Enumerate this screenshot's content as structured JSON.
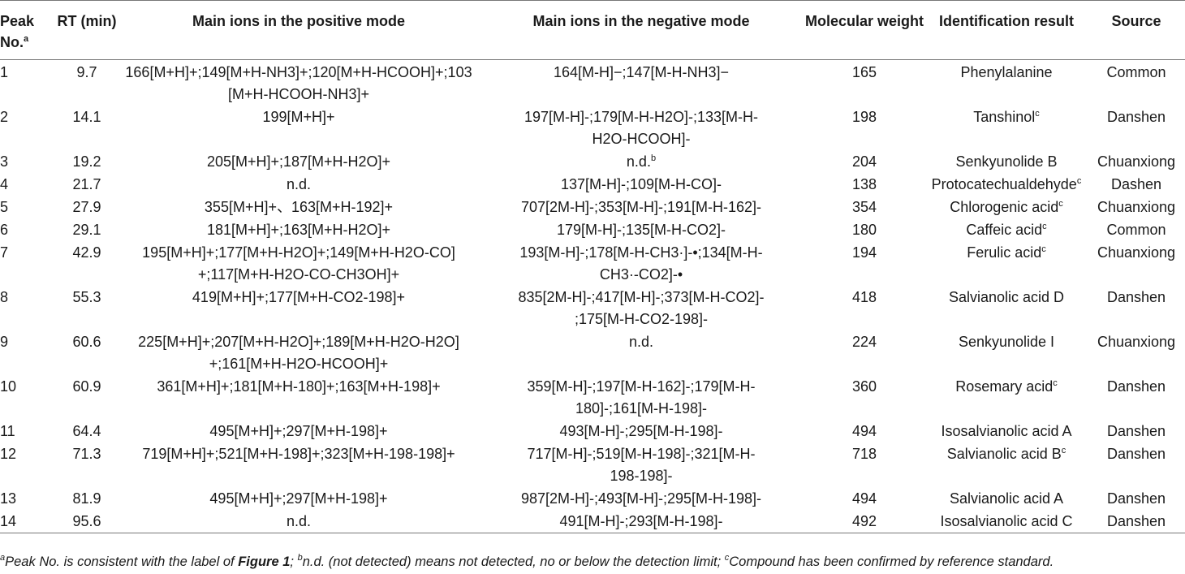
{
  "table": {
    "headers": {
      "peak": "Peak No.",
      "peak_sup": "a",
      "rt": "RT (min)",
      "pos": "Main ions in the positive mode",
      "neg": "Main ions in the negative mode",
      "mw": "Molecular weight",
      "id": "Identification result",
      "src": "Source"
    },
    "rows": [
      {
        "no": "1",
        "rt": "9.7",
        "pos": "166[M+H]+;149[M+H-NH3]+;120[M+H-HCOOH]+;103\n[M+H-HCOOH-NH3]+",
        "neg": "164[M-H]−;147[M-H-NH3]−",
        "neg_sup": "",
        "mw": "165",
        "id": "Phenylalanine",
        "id_sup": "",
        "src": "Common"
      },
      {
        "no": "2",
        "rt": "14.1",
        "pos": "199[M+H]+",
        "neg": "197[M-H]-;179[M-H-H2O]-;133[M-H-\nH2O-HCOOH]-",
        "neg_sup": "",
        "mw": "198",
        "id": "Tanshinol",
        "id_sup": "c",
        "src": "Danshen"
      },
      {
        "no": "3",
        "rt": "19.2",
        "pos": "205[M+H]+;187[M+H-H2O]+",
        "neg": "n.d.",
        "neg_sup": "b",
        "mw": "204",
        "id": "Senkyunolide B",
        "id_sup": "",
        "src": "Chuanxiong"
      },
      {
        "no": "4",
        "rt": "21.7",
        "pos": "n.d.",
        "neg": "137[M-H]-;109[M-H-CO]-",
        "neg_sup": "",
        "mw": "138",
        "id": "Protocatechualdehyde",
        "id_sup": "c",
        "src": "Dashen"
      },
      {
        "no": "5",
        "rt": "27.9",
        "pos": "355[M+H]+、163[M+H-192]+",
        "neg": "707[2M-H]-;353[M-H]-;191[M-H-162]-",
        "neg_sup": "",
        "mw": "354",
        "id": "Chlorogenic acid",
        "id_sup": "c",
        "src": "Chuanxiong"
      },
      {
        "no": "6",
        "rt": "29.1",
        "pos": "181[M+H]+;163[M+H-H2O]+",
        "neg": "179[M-H]-;135[M-H-CO2]-",
        "neg_sup": "",
        "mw": "180",
        "id": "Caffeic acid",
        "id_sup": "c",
        "src": "Common"
      },
      {
        "no": "7",
        "rt": "42.9",
        "pos": "195[M+H]+;177[M+H-H2O]+;149[M+H-H2O-CO]\n+;117[M+H-H2O-CO-CH3OH]+",
        "neg": "193[M-H]-;178[M-H-CH3·]-•;134[M-H-\nCH3·-CO2]-•",
        "neg_sup": "",
        "mw": "194",
        "id": "Ferulic acid",
        "id_sup": "c",
        "src": "Chuanxiong"
      },
      {
        "no": "8",
        "rt": "55.3",
        "pos": "419[M+H]+;177[M+H-CO2-198]+",
        "neg": "835[2M-H]-;417[M-H]-;373[M-H-CO2]-\n;175[M-H-CO2-198]-",
        "neg_sup": "",
        "mw": "418",
        "id": "Salvianolic acid D",
        "id_sup": "",
        "src": "Danshen"
      },
      {
        "no": "9",
        "rt": "60.6",
        "pos": "225[M+H]+;207[M+H-H2O]+;189[M+H-H2O-H2O]\n+;161[M+H-H2O-HCOOH]+",
        "neg": "n.d.",
        "neg_sup": "",
        "mw": "224",
        "id": "Senkyunolide I",
        "id_sup": "",
        "src": "Chuanxiong"
      },
      {
        "no": "10",
        "rt": "60.9",
        "pos": "361[M+H]+;181[M+H-180]+;163[M+H-198]+",
        "neg": "359[M-H]-;197[M-H-162]-;179[M-H-\n180]-;161[M-H-198]-",
        "neg_sup": "",
        "mw": "360",
        "id": "Rosemary acid",
        "id_sup": "c",
        "src": "Danshen"
      },
      {
        "no": "11",
        "rt": "64.4",
        "pos": "495[M+H]+;297[M+H-198]+",
        "neg": "493[M-H]-;295[M-H-198]-",
        "neg_sup": "",
        "mw": "494",
        "id": "Isosalvianolic acid A",
        "id_sup": "",
        "src": "Danshen"
      },
      {
        "no": "12",
        "rt": "71.3",
        "pos": "719[M+H]+;521[M+H-198]+;323[M+H-198-198]+",
        "neg": "717[M-H]-;519[M-H-198]-;321[M-H-\n198-198]-",
        "neg_sup": "",
        "mw": "718",
        "id": "Salvianolic acid B",
        "id_sup": "c",
        "src": "Danshen"
      },
      {
        "no": "13",
        "rt": "81.9",
        "pos": "495[M+H]+;297[M+H-198]+",
        "neg": "987[2M-H]-;493[M-H]-;295[M-H-198]-",
        "neg_sup": "",
        "mw": "494",
        "id": "Salvianolic acid A",
        "id_sup": "",
        "src": "Danshen"
      },
      {
        "no": "14",
        "rt": "95.6",
        "pos": "n.d.",
        "neg": "491[M-H]-;293[M-H-198]-",
        "neg_sup": "",
        "mw": "492",
        "id": "Isosalvianolic acid C",
        "id_sup": "",
        "src": "Danshen"
      }
    ]
  },
  "footnote": {
    "a_sup": "a",
    "a_text_1": "Peak No. is consistent with the label of ",
    "a_bold": "Figure 1",
    "a_text_2": "; ",
    "b_sup": "b",
    "b_text": "n.d. (not detected) means not detected, no or below the detection limit; ",
    "c_sup": "c",
    "c_text": "Compound has been confirmed by reference standard."
  }
}
